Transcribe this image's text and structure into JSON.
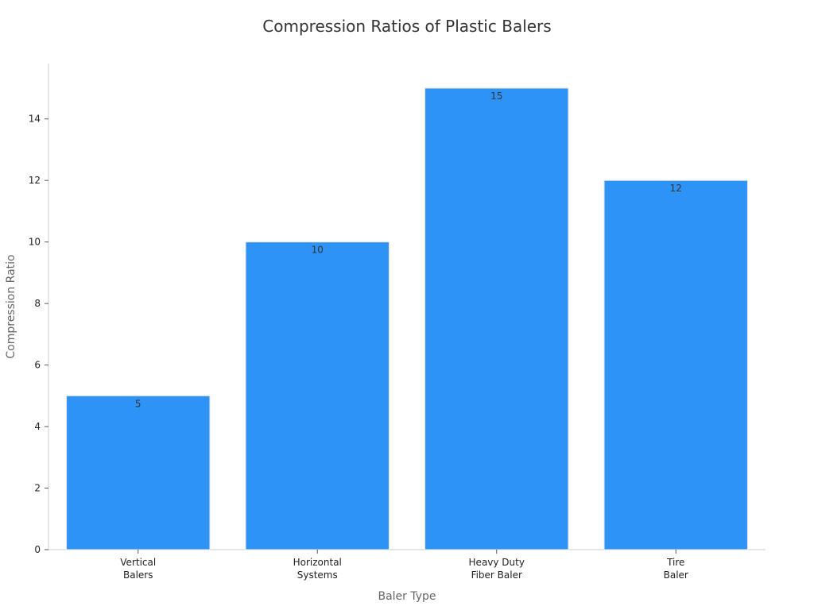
{
  "chart_data": {
    "type": "bar",
    "title": "Compression Ratios of Plastic Balers",
    "xlabel": "Baler Type",
    "ylabel": "Compression Ratio",
    "categories": [
      [
        "Vertical",
        "Balers"
      ],
      [
        "Horizontal",
        "Systems"
      ],
      [
        "Heavy Duty",
        "Fiber Baler"
      ],
      [
        "Tire",
        "Baler"
      ]
    ],
    "values": [
      5,
      10,
      15,
      12
    ],
    "value_labels": [
      "5",
      "10",
      "15",
      "12"
    ],
    "ylim": [
      0,
      15.8
    ],
    "yticks": [
      0,
      2,
      4,
      6,
      8,
      10,
      12,
      14
    ],
    "ytick_labels": [
      "0",
      "2",
      "4",
      "6",
      "8",
      "10",
      "12",
      "14"
    ],
    "grid": false,
    "legend": "none",
    "colors": {
      "bar": "#2e93f7"
    }
  }
}
